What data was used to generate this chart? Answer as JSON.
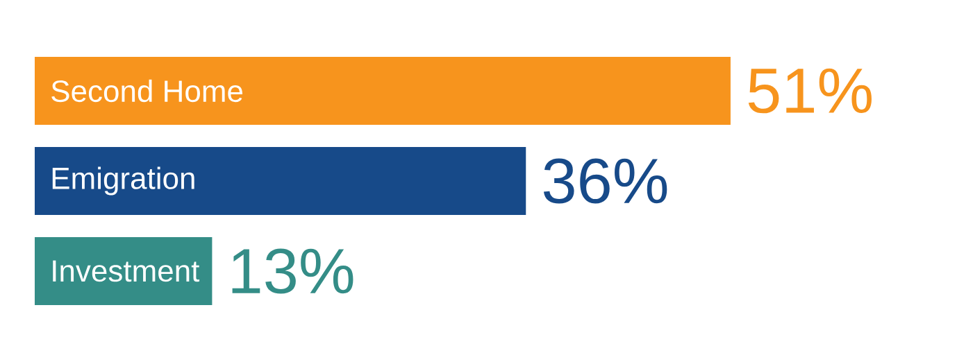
{
  "chart_data": {
    "type": "bar",
    "orientation": "horizontal",
    "categories": [
      "Second Home",
      "Emigration",
      "Investment"
    ],
    "values": [
      51,
      36,
      13
    ],
    "colors": [
      "#f7941d",
      "#174a89",
      "#348d87"
    ],
    "value_labels": [
      "51%",
      "36%",
      "13%"
    ],
    "tick_labels": false
  }
}
